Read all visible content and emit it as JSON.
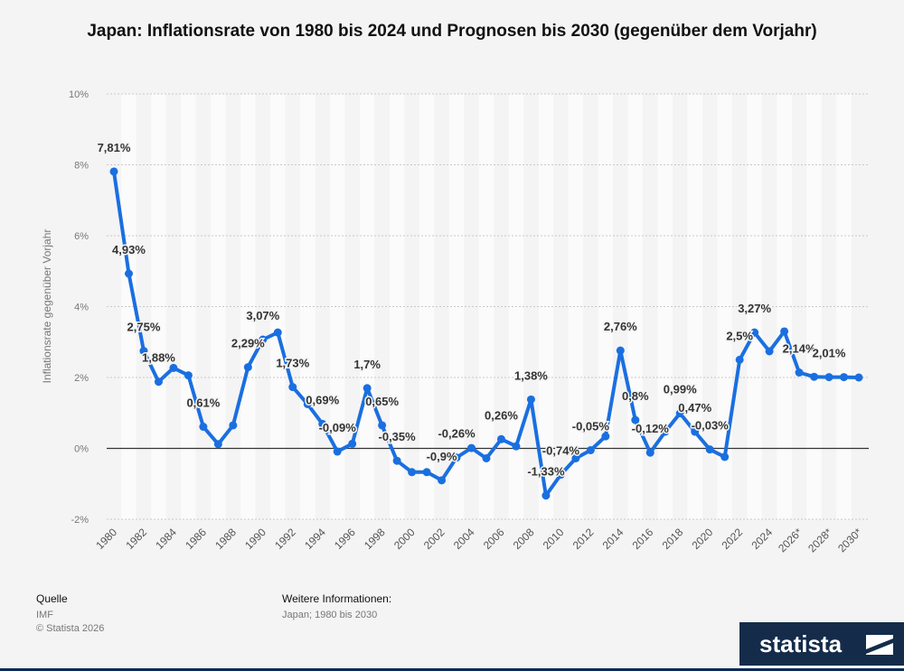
{
  "chart_data": {
    "type": "line",
    "title": "Japan: Inflationsrate von 1980 bis 2024 und Prognosen bis 2030 (gegenüber dem Vorjahr)",
    "ylabel": "Inflationsrate gegenüber Vorjahr",
    "xlabel": "",
    "ylim": [
      -2,
      10
    ],
    "yticks": [
      "-2%",
      "0%",
      "2%",
      "4%",
      "6%",
      "8%",
      "10%"
    ],
    "ytick_values": [
      -2,
      0,
      2,
      4,
      6,
      8,
      10
    ],
    "xtick_labels": [
      "1980",
      "1982",
      "1984",
      "1986",
      "1988",
      "1990",
      "1992",
      "1994",
      "1996",
      "1998",
      "2000",
      "2002",
      "2004",
      "2006",
      "2008",
      "2010",
      "2012",
      "2014",
      "2016",
      "2018",
      "2020",
      "2022",
      "2024",
      "2026*",
      "2028*",
      "2030*"
    ],
    "x": [
      "1980",
      "1981",
      "1982",
      "1983",
      "1984",
      "1985",
      "1986",
      "1987",
      "1988",
      "1989",
      "1990",
      "1991",
      "1992",
      "1993",
      "1994",
      "1995",
      "1996",
      "1997",
      "1998",
      "1999",
      "2000",
      "2001",
      "2002",
      "2003",
      "2004",
      "2005",
      "2006",
      "2007",
      "2008",
      "2009",
      "2010",
      "2011",
      "2012",
      "2013",
      "2014",
      "2015",
      "2016",
      "2017",
      "2018",
      "2019",
      "2020",
      "2021",
      "2022",
      "2023",
      "2024",
      "2025*",
      "2026*",
      "2027*",
      "2028*",
      "2029*",
      "2030*"
    ],
    "series": [
      {
        "values": [
          7.81,
          4.93,
          2.75,
          1.88,
          2.27,
          2.06,
          0.61,
          0.12,
          0.65,
          2.29,
          3.07,
          3.27,
          1.73,
          1.25,
          0.69,
          -0.09,
          0.13,
          1.7,
          0.65,
          -0.35,
          -0.67,
          -0.67,
          -0.9,
          -0.26,
          0.01,
          -0.28,
          0.26,
          0.06,
          1.38,
          -1.33,
          -0.74,
          -0.28,
          -0.05,
          0.34,
          2.76,
          0.8,
          -0.12,
          0.47,
          0.99,
          0.47,
          -0.03,
          -0.24,
          2.5,
          3.27,
          2.74,
          3.3,
          2.14,
          2.02,
          2.01,
          2.01,
          2.0
        ]
      }
    ],
    "data_labels": [
      {
        "i": 0,
        "text": "7,81%"
      },
      {
        "i": 1,
        "text": "4,93%"
      },
      {
        "i": 2,
        "text": "2,75%"
      },
      {
        "i": 3,
        "text": "1,88%"
      },
      {
        "i": 6,
        "text": "0,61%"
      },
      {
        "i": 9,
        "text": "2,29%"
      },
      {
        "i": 10,
        "text": "3,07%"
      },
      {
        "i": 12,
        "text": "1,73%"
      },
      {
        "i": 14,
        "text": "0,69%"
      },
      {
        "i": 15,
        "text": "-0,09%"
      },
      {
        "i": 17,
        "text": "1,7%"
      },
      {
        "i": 18,
        "text": "0,65%"
      },
      {
        "i": 19,
        "text": "-0,35%"
      },
      {
        "i": 22,
        "text": "-0,9%"
      },
      {
        "i": 23,
        "text": "-0,26%"
      },
      {
        "i": 26,
        "text": "0,26%"
      },
      {
        "i": 28,
        "text": "1,38%"
      },
      {
        "i": 29,
        "text": "-1,33%"
      },
      {
        "i": 30,
        "text": "-0,74%"
      },
      {
        "i": 32,
        "text": "-0,05%"
      },
      {
        "i": 34,
        "text": "2,76%"
      },
      {
        "i": 35,
        "text": "0,8%"
      },
      {
        "i": 36,
        "text": "-0,12%"
      },
      {
        "i": 38,
        "text": "0,99%"
      },
      {
        "i": 39,
        "text": "0,47%"
      },
      {
        "i": 40,
        "text": "-0,03%"
      },
      {
        "i": 42,
        "text": "2,5%"
      },
      {
        "i": 43,
        "text": "3,27%"
      },
      {
        "i": 46,
        "text": "2,14%"
      },
      {
        "i": 48,
        "text": "2,01%"
      }
    ],
    "grid": true,
    "colors": {
      "line": "#1a6fe0",
      "zero_line": "#333333",
      "band": "#fbfbfb",
      "label": "#333333"
    }
  },
  "footer": {
    "source_heading": "Quelle",
    "source": "IMF",
    "copyright": "© Statista 2026",
    "info_heading": "Weitere Informationen:",
    "info": "Japan; 1980 bis 2030"
  },
  "brand": {
    "logo_text": "statista",
    "color": "#142c4a"
  }
}
